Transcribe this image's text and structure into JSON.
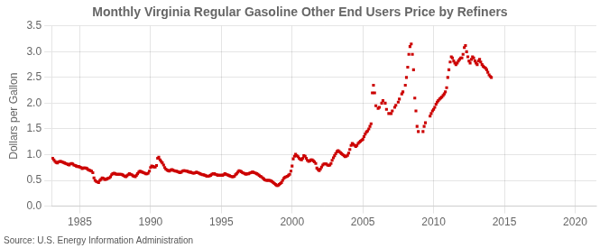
{
  "chart_data": {
    "type": "scatter",
    "title": "Monthly Virginia Regular Gasoline Other End Users Price by Refiners",
    "ylabel": "Dollars per Gallon",
    "annotation": "Source: U.S. Energy Information Administration",
    "color": "#cc0000",
    "marker": "square",
    "grid": true,
    "xlim": [
      1983.0,
      2021.5
    ],
    "xticks": [
      1985,
      1990,
      1995,
      2000,
      2005,
      2010,
      2015,
      2020
    ],
    "ylim": [
      0.0,
      3.5
    ],
    "yticks": [
      {
        "value": 0.0,
        "label": "0.0"
      },
      0.5,
      {
        "value": 1.0,
        "label": "1.0"
      },
      1.5,
      {
        "value": 2.0,
        "label": "2.0"
      },
      2.5,
      {
        "value": 3.0,
        "label": "3.0"
      },
      3.5
    ],
    "x": [
      1983.08,
      1983.17,
      1983.25,
      1983.33,
      1983.42,
      1983.5,
      1983.58,
      1983.67,
      1983.75,
      1983.83,
      1983.92,
      1984.0,
      1984.08,
      1984.17,
      1984.25,
      1984.33,
      1984.42,
      1984.5,
      1984.58,
      1984.67,
      1984.75,
      1984.83,
      1984.92,
      1985.0,
      1985.08,
      1985.17,
      1985.25,
      1985.33,
      1985.42,
      1985.5,
      1985.58,
      1985.67,
      1985.75,
      1985.83,
      1985.92,
      1986.0,
      1986.08,
      1986.17,
      1986.25,
      1986.33,
      1986.42,
      1986.5,
      1986.58,
      1986.67,
      1986.75,
      1986.83,
      1986.92,
      1987.0,
      1987.08,
      1987.17,
      1987.25,
      1987.33,
      1987.42,
      1987.5,
      1987.58,
      1987.67,
      1987.75,
      1987.83,
      1987.92,
      1988.0,
      1988.08,
      1988.17,
      1988.25,
      1988.33,
      1988.42,
      1988.5,
      1988.58,
      1988.67,
      1988.75,
      1988.83,
      1988.92,
      1989.0,
      1989.08,
      1989.17,
      1989.25,
      1989.33,
      1989.42,
      1989.5,
      1989.58,
      1989.67,
      1989.75,
      1989.83,
      1989.92,
      1990.0,
      1990.08,
      1990.17,
      1990.25,
      1990.33,
      1990.42,
      1990.5,
      1990.58,
      1990.67,
      1990.75,
      1990.83,
      1990.92,
      1991.0,
      1991.08,
      1991.17,
      1991.25,
      1991.33,
      1991.42,
      1991.5,
      1991.58,
      1991.67,
      1991.75,
      1991.83,
      1991.92,
      1992.0,
      1992.08,
      1992.17,
      1992.25,
      1992.33,
      1992.42,
      1992.5,
      1992.58,
      1992.67,
      1992.75,
      1992.83,
      1992.92,
      1993.0,
      1993.08,
      1993.17,
      1993.25,
      1993.33,
      1993.42,
      1993.5,
      1993.58,
      1993.67,
      1993.75,
      1993.83,
      1993.92,
      1994.0,
      1994.08,
      1994.17,
      1994.25,
      1994.33,
      1994.42,
      1994.5,
      1994.58,
      1994.67,
      1994.75,
      1994.83,
      1994.92,
      1995.0,
      1995.08,
      1995.17,
      1995.25,
      1995.33,
      1995.42,
      1995.5,
      1995.58,
      1995.67,
      1995.75,
      1995.83,
      1995.92,
      1996.0,
      1996.08,
      1996.17,
      1996.25,
      1996.33,
      1996.42,
      1996.5,
      1996.58,
      1996.67,
      1996.75,
      1996.83,
      1996.92,
      1997.0,
      1997.08,
      1997.17,
      1997.25,
      1997.33,
      1997.42,
      1997.5,
      1997.58,
      1997.67,
      1997.75,
      1997.83,
      1997.92,
      1998.0,
      1998.08,
      1998.17,
      1998.25,
      1998.33,
      1998.42,
      1998.5,
      1998.58,
      1998.67,
      1998.75,
      1998.83,
      1998.92,
      1999.0,
      1999.08,
      1999.17,
      1999.25,
      1999.33,
      1999.42,
      1999.5,
      1999.58,
      1999.67,
      1999.75,
      1999.83,
      1999.92,
      2000.0,
      2000.08,
      2000.17,
      2000.25,
      2000.33,
      2000.42,
      2000.5,
      2000.58,
      2000.67,
      2000.75,
      2000.83,
      2000.92,
      2001.0,
      2001.08,
      2001.17,
      2001.25,
      2001.33,
      2001.42,
      2001.5,
      2001.58,
      2001.67,
      2001.75,
      2001.83,
      2001.92,
      2002.0,
      2002.08,
      2002.17,
      2002.25,
      2002.33,
      2002.42,
      2002.5,
      2002.58,
      2002.67,
      2002.75,
      2002.83,
      2002.92,
      2003.0,
      2003.08,
      2003.17,
      2003.25,
      2003.33,
      2003.42,
      2003.5,
      2003.58,
      2003.67,
      2003.75,
      2003.83,
      2003.92,
      2004.0,
      2004.08,
      2004.17,
      2004.25,
      2004.33,
      2004.42,
      2004.5,
      2004.58,
      2004.67,
      2004.75,
      2004.83,
      2004.92,
      2005.0,
      2005.08,
      2005.17,
      2005.25,
      2005.33,
      2005.42,
      2005.5,
      2005.58,
      2005.67,
      2005.75,
      2005.83,
      2005.92,
      2006.08,
      2006.17,
      2006.33,
      2006.42,
      2006.58,
      2006.67,
      2006.83,
      2007.0,
      2007.08,
      2007.25,
      2007.33,
      2007.5,
      2007.58,
      2007.75,
      2007.83,
      2008.0,
      2008.08,
      2008.17,
      2008.25,
      2008.33,
      2008.42,
      2008.5,
      2008.58,
      2008.67,
      2008.75,
      2008.83,
      2008.92,
      2009.25,
      2009.33,
      2009.42,
      2009.75,
      2009.83,
      2009.92,
      2010.0,
      2010.08,
      2010.17,
      2010.25,
      2010.33,
      2010.42,
      2010.5,
      2010.58,
      2010.67,
      2010.75,
      2010.83,
      2010.92,
      2011.0,
      2011.08,
      2011.17,
      2011.25,
      2011.33,
      2011.42,
      2011.5,
      2011.58,
      2011.67,
      2011.75,
      2011.83,
      2011.92,
      2012.0,
      2012.08,
      2012.17,
      2012.25,
      2012.33,
      2012.42,
      2012.5,
      2012.58,
      2012.67,
      2012.75,
      2012.83,
      2012.92,
      2013.0,
      2013.08,
      2013.17,
      2013.25,
      2013.33,
      2013.42,
      2013.5,
      2013.58,
      2013.67,
      2013.75,
      2013.83,
      2013.92,
      2014.0,
      2014.08
    ],
    "values": [
      0.93,
      0.9,
      0.87,
      0.85,
      0.84,
      0.86,
      0.87,
      0.87,
      0.86,
      0.85,
      0.84,
      0.83,
      0.82,
      0.81,
      0.8,
      0.82,
      0.83,
      0.82,
      0.8,
      0.79,
      0.78,
      0.77,
      0.77,
      0.76,
      0.75,
      0.73,
      0.74,
      0.74,
      0.74,
      0.73,
      0.71,
      0.7,
      0.69,
      0.68,
      0.65,
      0.55,
      0.5,
      0.48,
      0.47,
      0.46,
      0.5,
      0.52,
      0.55,
      0.54,
      0.52,
      0.52,
      0.53,
      0.54,
      0.55,
      0.57,
      0.61,
      0.63,
      0.64,
      0.63,
      0.62,
      0.62,
      0.62,
      0.62,
      0.62,
      0.61,
      0.6,
      0.58,
      0.57,
      0.59,
      0.61,
      0.63,
      0.62,
      0.61,
      0.59,
      0.58,
      0.57,
      0.6,
      0.63,
      0.66,
      0.68,
      0.67,
      0.66,
      0.65,
      0.64,
      0.63,
      0.63,
      0.64,
      0.68,
      0.75,
      0.78,
      0.77,
      0.76,
      0.76,
      0.79,
      0.93,
      0.95,
      0.9,
      0.87,
      0.84,
      0.8,
      0.75,
      0.72,
      0.7,
      0.69,
      0.68,
      0.7,
      0.71,
      0.7,
      0.69,
      0.68,
      0.68,
      0.67,
      0.66,
      0.65,
      0.66,
      0.68,
      0.69,
      0.69,
      0.68,
      0.68,
      0.67,
      0.66,
      0.66,
      0.65,
      0.64,
      0.64,
      0.65,
      0.66,
      0.65,
      0.64,
      0.63,
      0.62,
      0.61,
      0.61,
      0.6,
      0.59,
      0.58,
      0.58,
      0.59,
      0.6,
      0.62,
      0.63,
      0.63,
      0.62,
      0.61,
      0.6,
      0.6,
      0.6,
      0.6,
      0.6,
      0.61,
      0.63,
      0.62,
      0.61,
      0.6,
      0.59,
      0.58,
      0.57,
      0.57,
      0.58,
      0.61,
      0.63,
      0.66,
      0.69,
      0.68,
      0.67,
      0.65,
      0.64,
      0.63,
      0.62,
      0.63,
      0.63,
      0.64,
      0.65,
      0.66,
      0.66,
      0.65,
      0.64,
      0.63,
      0.62,
      0.6,
      0.58,
      0.57,
      0.55,
      0.53,
      0.51,
      0.5,
      0.5,
      0.5,
      0.5,
      0.49,
      0.48,
      0.46,
      0.44,
      0.42,
      0.4,
      0.4,
      0.42,
      0.44,
      0.46,
      0.5,
      0.54,
      0.56,
      0.57,
      0.58,
      0.6,
      0.62,
      0.68,
      0.78,
      0.92,
      0.97,
      1.01,
      0.98,
      0.96,
      0.93,
      0.91,
      0.9,
      0.93,
      0.98,
      0.97,
      0.93,
      0.89,
      0.87,
      0.88,
      0.9,
      0.9,
      0.88,
      0.86,
      0.83,
      0.74,
      0.71,
      0.69,
      0.72,
      0.76,
      0.8,
      0.82,
      0.82,
      0.82,
      0.8,
      0.79,
      0.8,
      0.83,
      0.89,
      0.94,
      0.98,
      1.02,
      1.06,
      1.08,
      1.06,
      1.04,
      1.02,
      1.0,
      0.98,
      0.96,
      0.97,
      0.99,
      1.03,
      1.1,
      1.18,
      1.22,
      1.2,
      1.18,
      1.16,
      1.18,
      1.22,
      1.24,
      1.26,
      1.28,
      1.3,
      1.35,
      1.4,
      1.44,
      1.46,
      1.5,
      1.55,
      1.6,
      2.2,
      2.35,
      2.2,
      1.95,
      1.9,
      1.92,
      2.0,
      2.05,
      2.0,
      1.88,
      1.8,
      1.8,
      1.85,
      1.92,
      1.96,
      2.02,
      2.08,
      2.18,
      2.22,
      2.35,
      2.5,
      2.7,
      2.95,
      3.1,
      3.15,
      2.95,
      2.65,
      2.1,
      1.85,
      1.55,
      1.45,
      1.45,
      1.55,
      1.62,
      1.75,
      1.8,
      1.85,
      1.88,
      1.92,
      1.98,
      2.02,
      2.05,
      2.08,
      2.1,
      2.12,
      2.15,
      2.18,
      2.22,
      2.3,
      2.5,
      2.65,
      2.8,
      2.9,
      2.88,
      2.82,
      2.78,
      2.75,
      2.78,
      2.82,
      2.85,
      2.88,
      2.88,
      2.95,
      3.08,
      3.12,
      3.0,
      2.9,
      2.82,
      2.78,
      2.85,
      2.9,
      2.88,
      2.82,
      2.78,
      2.75,
      2.82,
      2.85,
      2.8,
      2.75,
      2.72,
      2.7,
      2.68,
      2.65,
      2.6,
      2.55,
      2.52,
      2.5
    ]
  }
}
